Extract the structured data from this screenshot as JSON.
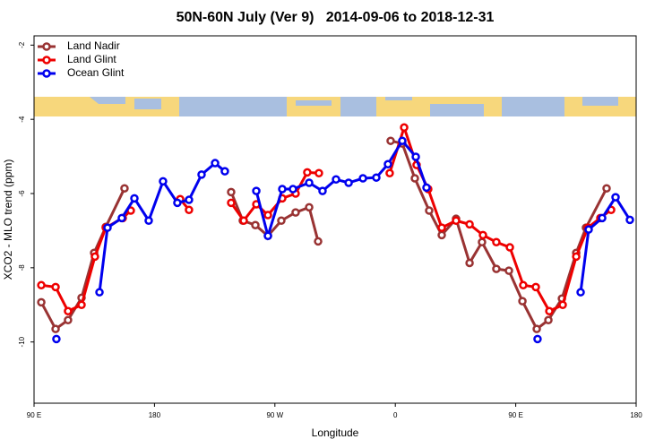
{
  "chart_data": {
    "type": "line",
    "title": "50N-60N July (Ver 9)   2014-09-06 to 2018-12-31",
    "x_label": "Longitude",
    "y_label": "XCO2 - MLO trend (ppm)",
    "xlim": [
      90,
      540
    ],
    "xticks": [
      {
        "value": 90,
        "label": "90 E"
      },
      180,
      {
        "value": 270,
        "label": "90 W"
      },
      {
        "value": 360,
        "label": "0"
      },
      {
        "value": 450,
        "label": "90 E"
      },
      {
        "value": 540,
        "label": "180"
      }
    ],
    "ylim": [
      -11.65,
      -1.75
    ],
    "yticks": [
      -10,
      -8,
      -6,
      -4,
      -2
    ],
    "legend": "top-left",
    "series": [
      {
        "name": "Land Nadir",
        "color": "#993333",
        "x": [
          95.4,
          106.1,
          115.4,
          125.5,
          134.9,
          143.6,
          157.6,
          null,
          237.3,
          246.0,
          255.4,
          264.8,
          274.8,
          285.5,
          295.6,
          302.3,
          null,
          356.5,
          365.2,
          374.6,
          385.3,
          394.7,
          405.4,
          415.5,
          424.8,
          435.5,
          444.9,
          455.0,
          465.7,
          474.4,
          484.5,
          495.2,
          502.5,
          517.9
        ],
        "values": [
          -8.93,
          -9.65,
          -9.41,
          -8.81,
          -7.6,
          -6.9,
          -5.86,
          null,
          -5.96,
          -6.73,
          -6.85,
          -7.14,
          -6.73,
          -6.51,
          -6.37,
          -7.29,
          null,
          -4.58,
          -4.65,
          -5.59,
          -6.46,
          -7.12,
          -6.68,
          -7.87,
          -7.31,
          -8.03,
          -8.08,
          -8.9,
          -9.65,
          -9.41,
          -8.83,
          -7.6,
          -6.92,
          -5.86
        ]
      },
      {
        "name": "Land Glint",
        "color": "#ee0000",
        "x": [
          95.4,
          106.1,
          115.4,
          125.5,
          135.5,
          143.6,
          156.3,
          162.3,
          null,
          199.2,
          205.8,
          null,
          237.3,
          246.7,
          256.1,
          264.8,
          275.5,
          285.5,
          294.2,
          302.9,
          null,
          355.8,
          366.6,
          375.9,
          384.6,
          394.7,
          405.4,
          415.5,
          425.5,
          435.5,
          445.6,
          455.6,
          465.0,
          475.1,
          485.1,
          495.2,
          503.9,
          513.2,
          521.3
        ],
        "values": [
          -8.47,
          -8.52,
          -9.17,
          -9.0,
          -7.7,
          -6.92,
          -6.66,
          -6.46,
          null,
          -6.15,
          -6.44,
          null,
          -6.25,
          -6.73,
          -6.29,
          -6.58,
          -6.13,
          -6.0,
          -5.43,
          -5.45,
          null,
          -5.45,
          -4.22,
          -5.23,
          -5.88,
          -6.92,
          -6.73,
          -6.83,
          -7.12,
          -7.31,
          -7.45,
          -8.47,
          -8.52,
          -9.17,
          -9.0,
          -7.7,
          -6.92,
          -6.66,
          -6.44
        ]
      },
      {
        "name": "Ocean Glint",
        "color": "#0000ee",
        "x": [
          106.7,
          null,
          138.9,
          144.9,
          155.6,
          165.0,
          175.7,
          186.4,
          197.1,
          205.8,
          215.2,
          225.3,
          232.6,
          null,
          256.1,
          264.8,
          275.5,
          283.5,
          295.6,
          305.6,
          315.7,
          325.1,
          335.8,
          345.8,
          354.5,
          365.2,
          375.3,
          383.3,
          null,
          466.3,
          null,
          498.5,
          504.5,
          514.6,
          524.6,
          535.3
        ],
        "values": [
          -9.92,
          null,
          -8.66,
          -6.92,
          -6.66,
          -6.13,
          -6.73,
          -5.67,
          -6.25,
          -6.17,
          -5.49,
          -5.18,
          -5.4,
          null,
          -5.93,
          -7.14,
          -5.88,
          -5.88,
          -5.71,
          -5.93,
          -5.62,
          -5.71,
          -5.59,
          -5.57,
          -5.21,
          -4.58,
          -5.01,
          -5.84,
          null,
          -9.92,
          null,
          -8.66,
          -6.97,
          -6.66,
          -6.1,
          -6.71
        ]
      }
    ]
  }
}
